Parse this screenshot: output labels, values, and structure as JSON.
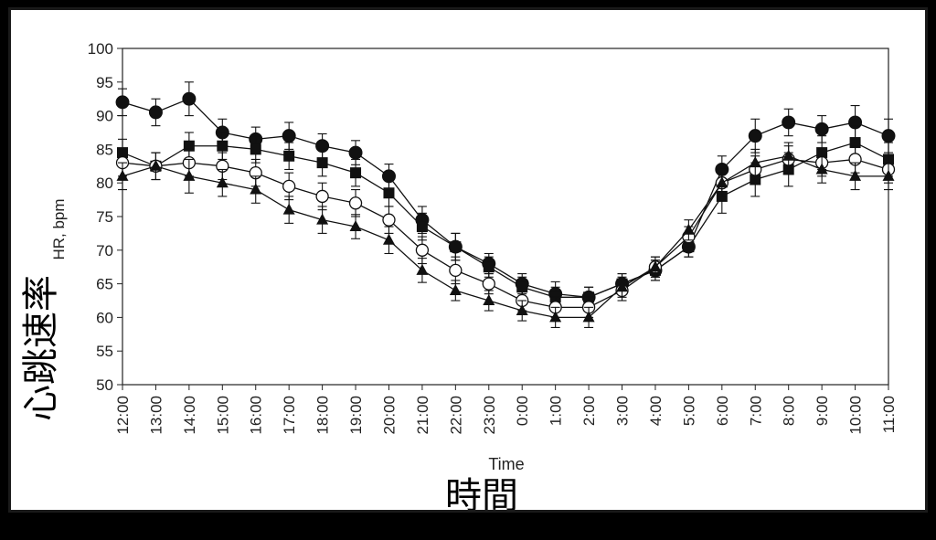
{
  "chart_data": {
    "type": "line",
    "xlabel": "Time",
    "xlabel_cjk": "時間",
    "ylabel": "HR, bpm",
    "ylabel_cjk": "心跳速率",
    "ylim": [
      50,
      100
    ],
    "yticks": [
      50,
      55,
      60,
      65,
      70,
      75,
      80,
      85,
      90,
      95,
      100
    ],
    "grid": false,
    "categories": [
      "12:00",
      "13:00",
      "14:00",
      "15:00",
      "16:00",
      "17:00",
      "18:00",
      "19:00",
      "20:00",
      "21:00",
      "22:00",
      "23:00",
      "0:00",
      "1:00",
      "2:00",
      "3:00",
      "4:00",
      "5:00",
      "6:00",
      "7:00",
      "8:00",
      "9:00",
      "10:00",
      "11:00"
    ],
    "series": [
      {
        "marker": "filled-circle",
        "values": [
          92,
          90.5,
          92.5,
          87.5,
          86.5,
          87,
          85.5,
          84.5,
          81,
          74.5,
          70.5,
          68,
          65,
          63.5,
          63,
          65,
          67,
          70.5,
          82,
          87,
          89,
          88,
          89,
          87
        ],
        "errors": [
          2,
          2,
          2.5,
          2,
          1.8,
          2,
          1.8,
          1.8,
          1.8,
          2,
          2,
          1.5,
          1.5,
          1.8,
          1.5,
          1.5,
          1.5,
          1.5,
          2,
          2.5,
          2,
          2,
          2.5,
          2.5
        ]
      },
      {
        "marker": "filled-square",
        "values": [
          84.5,
          82.5,
          85.5,
          85.5,
          85,
          84,
          83,
          81.5,
          78.5,
          73.5,
          70.5,
          67.5,
          64.5,
          63,
          63,
          65,
          67,
          70.5,
          78,
          80.5,
          82,
          84.5,
          86,
          83.5
        ],
        "errors": [
          2,
          2,
          2,
          2,
          2,
          2,
          2,
          2,
          2,
          2,
          2,
          1.5,
          1.5,
          1.5,
          1.5,
          1.5,
          1.5,
          1.5,
          2.5,
          2.5,
          2.5,
          2.5,
          2.5,
          2.5
        ]
      },
      {
        "marker": "open-circle",
        "values": [
          83,
          82.5,
          83,
          82.5,
          81.5,
          79.5,
          78,
          77,
          74.5,
          70,
          67,
          65,
          62.5,
          61.5,
          61.5,
          64,
          67.5,
          72,
          80,
          82,
          83.5,
          83,
          83.5,
          82
        ],
        "errors": [
          2,
          2,
          2,
          2,
          2,
          2,
          2,
          2,
          2,
          2,
          2,
          1.5,
          1.5,
          1.5,
          1.5,
          1.5,
          1.5,
          1.5,
          2,
          2,
          2,
          2,
          2,
          2
        ]
      },
      {
        "marker": "filled-triangle",
        "values": [
          81,
          82.5,
          81,
          80,
          79,
          76,
          74.5,
          73.5,
          71.5,
          67,
          64,
          62.5,
          61,
          60,
          60,
          64.5,
          67.5,
          73,
          80,
          83,
          84,
          82,
          81,
          81
        ],
        "errors": [
          2,
          2,
          2.5,
          2,
          2,
          2,
          2,
          1.8,
          2,
          1.8,
          1.5,
          1.5,
          1.5,
          1.5,
          1.5,
          1.5,
          1.5,
          1.5,
          2,
          2,
          2,
          2,
          2,
          2
        ]
      }
    ]
  }
}
